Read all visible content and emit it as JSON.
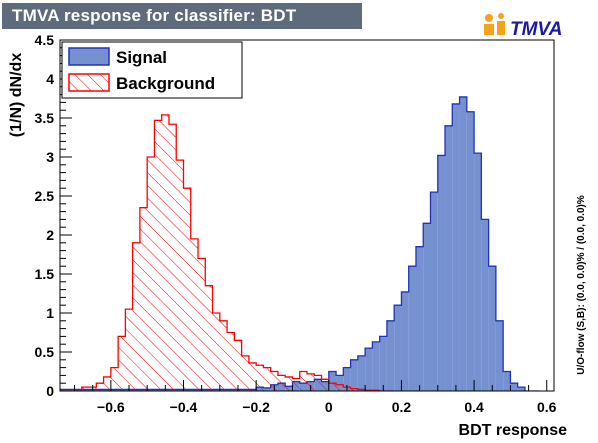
{
  "header": {
    "title": "TMVA response for classifier: BDT"
  },
  "logo": {
    "text": "TMVA",
    "accent": "#f6a21b",
    "text_color": "#1a1aa8",
    "first_letter_color": "#d11a1a"
  },
  "overflow_text": "U/O-flow (S,B): (0.0, 0.0)% / (0.0, 0.0)%",
  "colors": {
    "signal_fill": "#7591d0",
    "signal_line": "#1f33b8",
    "background_line": "#ff0000"
  },
  "chart_data": {
    "type": "histogram",
    "xlabel": "BDT response",
    "ylabel": "(1/N) dN/dx",
    "xlim": [
      -0.74,
      0.62
    ],
    "ylim": [
      0,
      4.5
    ],
    "xticks": [
      -0.6,
      -0.4,
      -0.2,
      0,
      0.2,
      0.4,
      0.6
    ],
    "yticks": [
      0,
      0.5,
      1,
      1.5,
      2,
      2.5,
      3,
      3.5,
      4,
      4.5
    ],
    "tick_labels_x": [
      "−0.6",
      "−0.4",
      "−0.2",
      "0",
      "0.2",
      "0.4",
      "0.6"
    ],
    "tick_labels_y": [
      "0",
      "0.5",
      "1",
      "1.5",
      "2",
      "2.5",
      "3",
      "3.5",
      "4",
      "4.5"
    ],
    "legend": {
      "placement": "top-left",
      "entries": [
        "Signal",
        "Background"
      ]
    },
    "series": [
      {
        "name": "Signal",
        "style": "filled",
        "bin_edges": [
          -0.74,
          -0.2,
          -0.18,
          -0.16,
          -0.14,
          -0.12,
          -0.1,
          -0.08,
          -0.06,
          -0.04,
          -0.02,
          0.0,
          0.02,
          0.04,
          0.06,
          0.08,
          0.1,
          0.12,
          0.14,
          0.16,
          0.18,
          0.2,
          0.22,
          0.24,
          0.26,
          0.28,
          0.3,
          0.32,
          0.34,
          0.36,
          0.38,
          0.4,
          0.42,
          0.44,
          0.46,
          0.48,
          0.5,
          0.52,
          0.54,
          0.56,
          0.58
        ],
        "values": [
          0.02,
          0.05,
          0.04,
          0.08,
          0.1,
          0.06,
          0.12,
          0.1,
          0.12,
          0.15,
          0.12,
          0.25,
          0.2,
          0.3,
          0.4,
          0.45,
          0.55,
          0.63,
          0.7,
          0.9,
          1.1,
          1.27,
          1.6,
          1.85,
          2.15,
          2.55,
          3.02,
          3.4,
          3.68,
          3.77,
          3.58,
          3.05,
          2.2,
          1.6,
          0.9,
          0.25,
          0.1,
          0.05,
          0.0,
          0.0
        ]
      },
      {
        "name": "Background",
        "style": "hatched",
        "bin_edges": [
          -0.74,
          -0.72,
          -0.7,
          -0.68,
          -0.66,
          -0.64,
          -0.62,
          -0.6,
          -0.58,
          -0.56,
          -0.54,
          -0.52,
          -0.5,
          -0.48,
          -0.46,
          -0.44,
          -0.42,
          -0.4,
          -0.38,
          -0.36,
          -0.34,
          -0.32,
          -0.3,
          -0.28,
          -0.26,
          -0.24,
          -0.22,
          -0.2,
          -0.18,
          -0.16,
          -0.14,
          -0.12,
          -0.1,
          -0.08,
          -0.06,
          -0.04,
          -0.02,
          0.0,
          0.02,
          0.04,
          0.06,
          0.08,
          0.1,
          0.12,
          0.14,
          0.16,
          0.18
        ],
        "values": [
          0.0,
          0.0,
          0.0,
          0.05,
          0.05,
          0.1,
          0.18,
          0.3,
          0.7,
          1.05,
          1.9,
          2.35,
          3.0,
          3.47,
          3.54,
          3.42,
          2.96,
          2.6,
          1.95,
          1.7,
          1.35,
          1.0,
          0.9,
          0.75,
          0.65,
          0.45,
          0.36,
          0.33,
          0.3,
          0.25,
          0.2,
          0.18,
          0.16,
          0.25,
          0.22,
          0.2,
          0.15,
          0.1,
          0.08,
          0.05,
          0.03,
          0.02,
          0.01,
          0.01,
          0.0,
          0.0
        ]
      }
    ]
  }
}
